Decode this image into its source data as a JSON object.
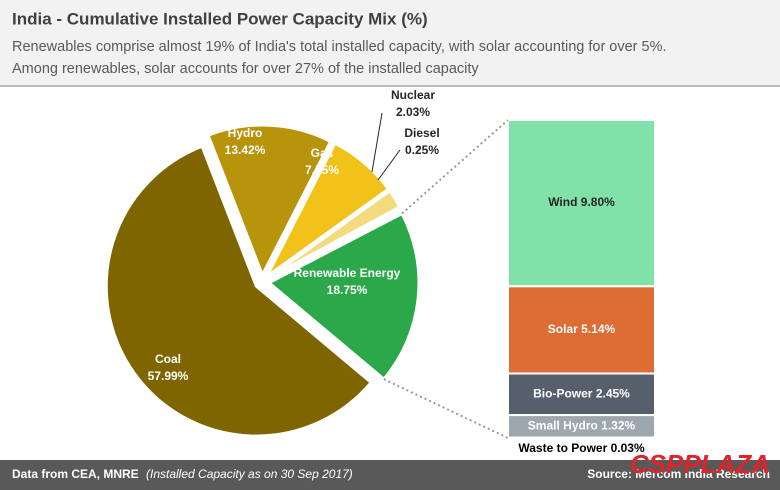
{
  "title": "India - Cumulative Installed Power Capacity Mix (%)",
  "subtitle_lines": [
    "Renewables comprise almost 19% of India's total installed capacity, with solar accounting for over 5%.",
    "Among renewables, solar accounts for over 27% of the installed capacity"
  ],
  "chart_data": [
    {
      "type": "pie",
      "categories": [
        "Renewable Energy",
        "Coal",
        "Hydro",
        "Gas",
        "Nuclear",
        "Diesel"
      ],
      "values": [
        18.75,
        57.99,
        13.42,
        7.55,
        2.03,
        0.25
      ],
      "value_labels": [
        "18.75%",
        "57.99%",
        "13.42%",
        "7.55%",
        "2.03%",
        "0.25%"
      ],
      "colors": [
        "#2aa84a",
        "#7f6500",
        "#b8930c",
        "#f0c21a",
        "#f3da7c",
        "#3a3a3a"
      ]
    },
    {
      "type": "stacked-bar",
      "categories": [
        "Wind",
        "Solar",
        "Bio-Power",
        "Small Hydro",
        "Waste to Power"
      ],
      "values": [
        9.8,
        5.14,
        2.45,
        1.32,
        0.03
      ],
      "value_labels": [
        "9.80%",
        "5.14%",
        "2.45%",
        "1.32%",
        "0.03%"
      ],
      "colors": [
        "#80e2a9",
        "#de6c35",
        "#56606c",
        "#9ea6ae",
        "#cfd3d6"
      ]
    }
  ],
  "footer": {
    "source_data": "Data from CEA, MNRE",
    "note": "(Installed Capacity as on 30 Sep 2017)",
    "source": "Source: Mercom India Research",
    "watermark": "CSPPLAZA"
  }
}
